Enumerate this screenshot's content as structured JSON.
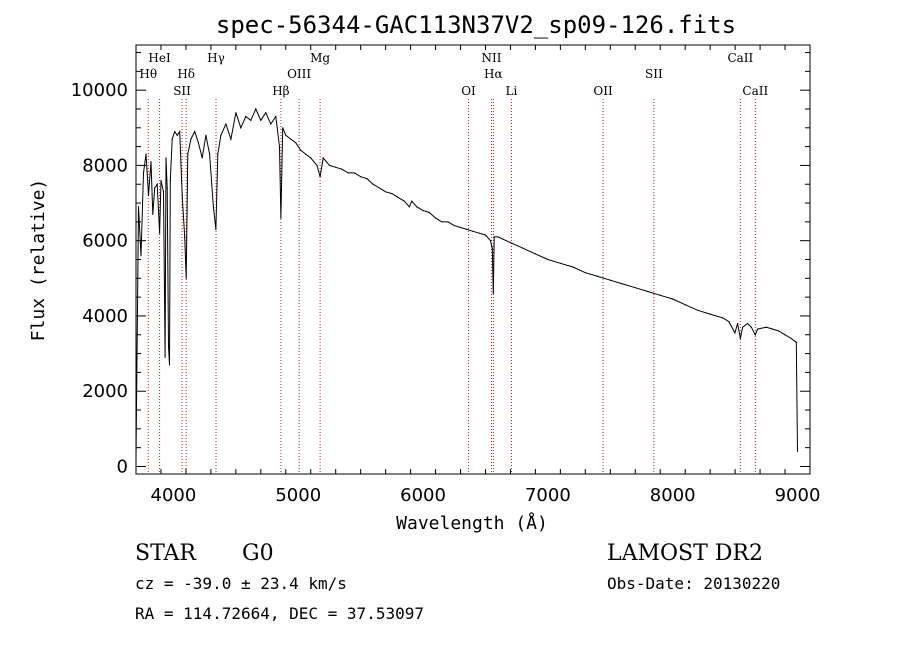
{
  "chart_data": {
    "type": "line",
    "title": "spec-56344-GAC113N37V2_sp09-126.fits",
    "xlabel": "Wavelength (Å)",
    "ylabel": "Flux (relative)",
    "xlim": [
      3700,
      9100
    ],
    "ylim": [
      -200,
      11200
    ],
    "x_ticks": [
      4000,
      5000,
      6000,
      7000,
      8000,
      9000
    ],
    "y_ticks": [
      0,
      2000,
      4000,
      6000,
      8000,
      10000
    ],
    "grid": false,
    "series": [
      {
        "x": [
          3700,
          3720,
          3740,
          3760,
          3780,
          3800,
          3820,
          3835,
          3850,
          3870,
          3889,
          3900,
          3920,
          3933,
          3940,
          3950,
          3960,
          3968,
          3975,
          3990,
          4010,
          4030,
          4050,
          4070,
          4090,
          4102,
          4115,
          4140,
          4170,
          4200,
          4230,
          4260,
          4290,
          4320,
          4340,
          4355,
          4380,
          4420,
          4460,
          4500,
          4540,
          4580,
          4620,
          4660,
          4700,
          4740,
          4780,
          4820,
          4850,
          4861,
          4875,
          4900,
          4940,
          4980,
          5020,
          5060,
          5100,
          5150,
          5175,
          5200,
          5250,
          5300,
          5350,
          5400,
          5450,
          5500,
          5550,
          5600,
          5650,
          5700,
          5750,
          5800,
          5850,
          5890,
          5910,
          5950,
          6000,
          6050,
          6100,
          6150,
          6200,
          6250,
          6300,
          6350,
          6400,
          6450,
          6500,
          6540,
          6555,
          6563,
          6570,
          6600,
          6700,
          6800,
          6900,
          7000,
          7100,
          7200,
          7300,
          7400,
          7500,
          7600,
          7700,
          7800,
          7900,
          8000,
          8100,
          8200,
          8300,
          8400,
          8450,
          8498,
          8520,
          8542,
          8560,
          8600,
          8630,
          8662,
          8680,
          8750,
          8800,
          8850,
          8900,
          8950,
          8990,
          9000
        ],
        "y": [
          200,
          6900,
          5600,
          7800,
          8300,
          7200,
          8100,
          6700,
          7400,
          7500,
          6200,
          7600,
          7300,
          2900,
          8200,
          7400,
          3200,
          2700,
          7600,
          8700,
          8900,
          8800,
          8900,
          7200,
          6100,
          5000,
          8300,
          8700,
          8900,
          8600,
          8200,
          8800,
          8300,
          6900,
          6300,
          8300,
          8800,
          9100,
          8700,
          9400,
          9000,
          9300,
          9200,
          9500,
          9200,
          9400,
          9100,
          9300,
          8500,
          6600,
          9000,
          8800,
          8700,
          8600,
          8400,
          8300,
          8200,
          8000,
          7700,
          8200,
          8000,
          7950,
          7900,
          7800,
          7800,
          7700,
          7650,
          7500,
          7400,
          7300,
          7250,
          7150,
          7050,
          6900,
          7050,
          6900,
          6800,
          6750,
          6600,
          6500,
          6500,
          6400,
          6350,
          6300,
          6250,
          6200,
          6150,
          6000,
          5800,
          4600,
          6100,
          6100,
          5950,
          5800,
          5650,
          5500,
          5400,
          5300,
          5150,
          5050,
          4950,
          4850,
          4750,
          4650,
          4550,
          4450,
          4300,
          4150,
          4050,
          3950,
          3850,
          3550,
          3800,
          3400,
          3700,
          3800,
          3700,
          3500,
          3650,
          3700,
          3650,
          3600,
          3500,
          3400,
          3300,
          400
        ]
      }
    ],
    "annotations": [
      {
        "label": "Hθ",
        "x": 3798,
        "row": 2
      },
      {
        "label": "HeI",
        "x": 3889,
        "row": 1
      },
      {
        "label": "SII",
        "x": 4069,
        "row": 3
      },
      {
        "label": "Hδ",
        "x": 4102,
        "row": 2
      },
      {
        "label": "Hγ",
        "x": 4341,
        "row": 1
      },
      {
        "label": "Hβ",
        "x": 4861,
        "row": 3
      },
      {
        "label": "OIII",
        "x": 5007,
        "row": 2
      },
      {
        "label": "Mg",
        "x": 5175,
        "row": 1
      },
      {
        "label": "OI",
        "x": 6364,
        "row": 3
      },
      {
        "label": "NII",
        "x": 6548,
        "row": 1
      },
      {
        "label": "Hα",
        "x": 6563,
        "row": 2
      },
      {
        "label": "Li",
        "x": 6708,
        "row": 3
      },
      {
        "label": "OII",
        "x": 7442,
        "row": 3
      },
      {
        "label": "SII",
        "x": 7849,
        "row": 2
      },
      {
        "label": "CaII",
        "x": 8542,
        "row": 1
      },
      {
        "label": "CaII",
        "x": 8662,
        "row": 3
      }
    ]
  },
  "info": {
    "object_class": "STAR",
    "subclass": "G0",
    "survey": "LAMOST DR2",
    "redshift": "cz = -39.0 ± 23.4 km/s",
    "obs_date": "Obs-Date: 20130220",
    "coords": "RA = 114.72664, DEC =  37.53097"
  }
}
